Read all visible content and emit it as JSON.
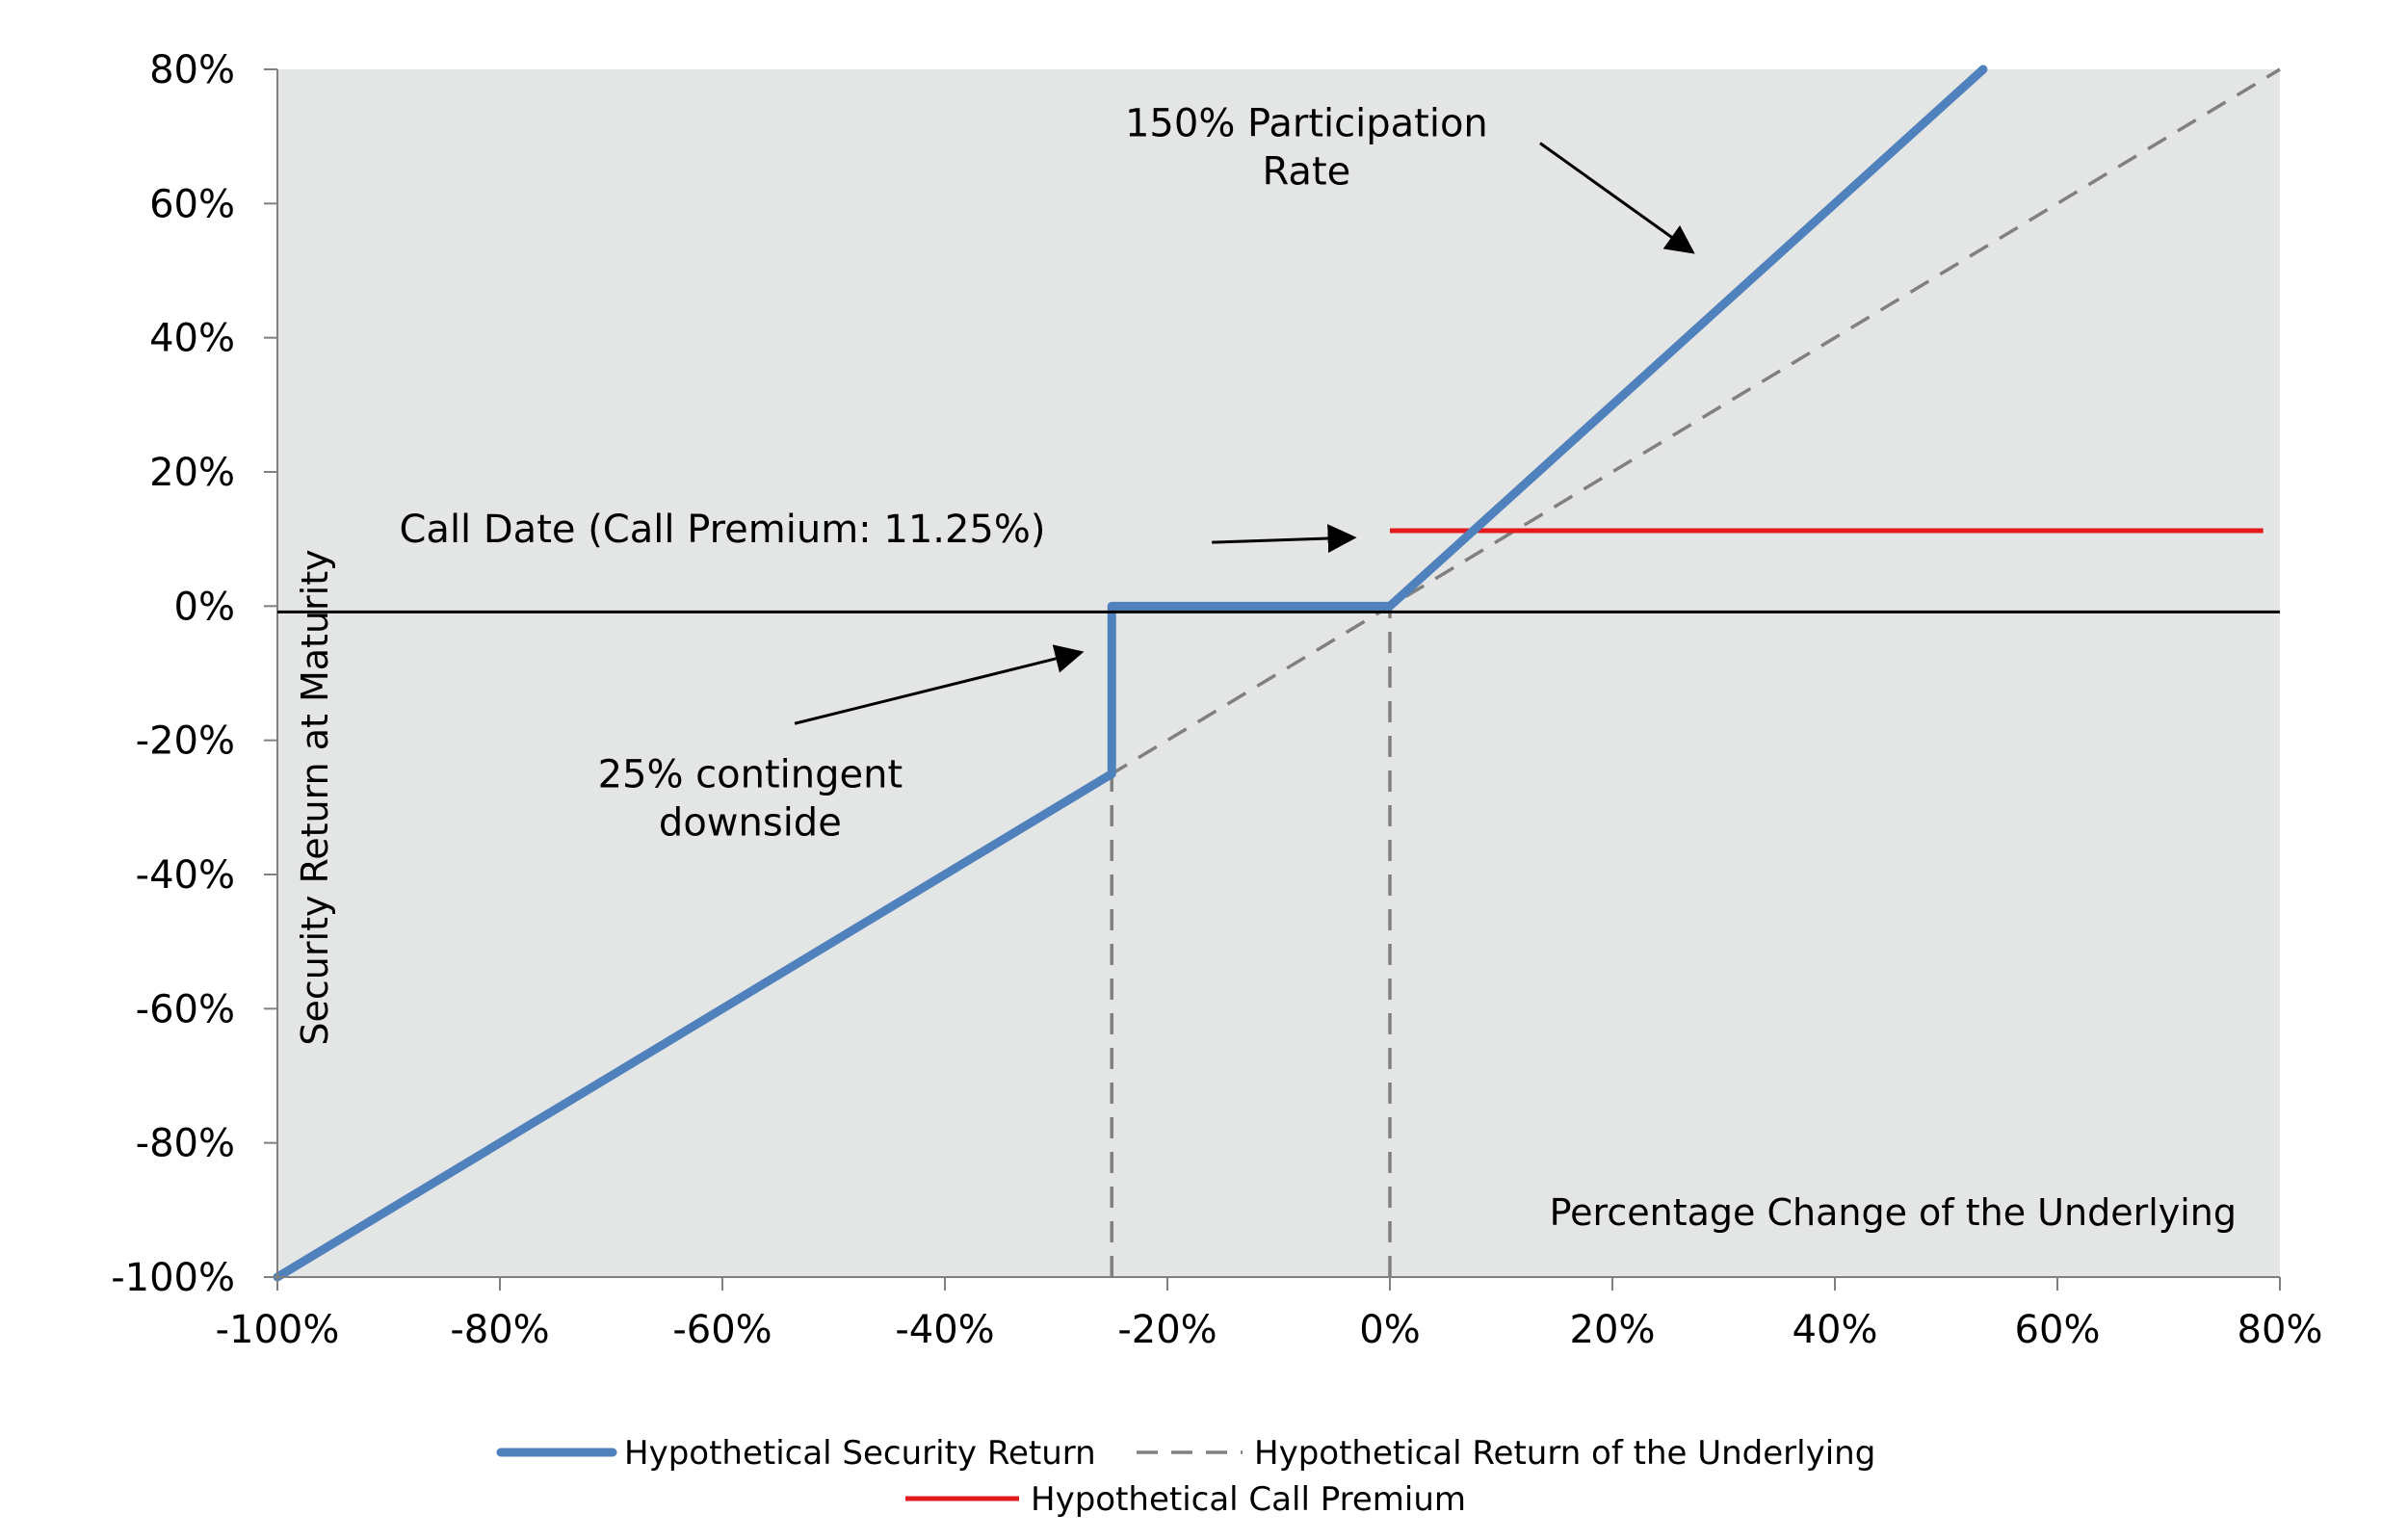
{
  "chart_data": {
    "type": "line",
    "title": "",
    "xlabel": "Percentage Change of the Underlying",
    "ylabel": "Security Return at Maturity",
    "xlim": [
      -100,
      80
    ],
    "ylim": [
      -100,
      80
    ],
    "x_ticks": [
      "-100%",
      "-80%",
      "-60%",
      "-40%",
      "-20%",
      "0%",
      "20%",
      "40%",
      "60%",
      "80%"
    ],
    "y_ticks": [
      "80%",
      "60%",
      "40%",
      "20%",
      "0%",
      "-20%",
      "-40%",
      "-60%",
      "-80%",
      "-100%"
    ],
    "grid": false,
    "legend_position": "bottom",
    "series": [
      {
        "name": "Hypothetical Security Return",
        "color": "#4F81BD",
        "style": "solid-thick",
        "points": [
          [
            -100,
            -100
          ],
          [
            -25,
            -25
          ],
          [
            -25,
            0
          ],
          [
            0,
            0
          ],
          [
            53.33,
            80
          ]
        ]
      },
      {
        "name": "Hypothetical Return of the Underlying",
        "color": "#808080",
        "style": "dashed",
        "points": [
          [
            -100,
            -100
          ],
          [
            80,
            80
          ]
        ]
      },
      {
        "name": "Hypothetical Call Premium",
        "color": "#E31A1C",
        "style": "solid",
        "points": [
          [
            0,
            11.25
          ],
          [
            78.5,
            11.25
          ]
        ]
      }
    ],
    "reference_lines": [
      {
        "x": -25,
        "y_from": -100,
        "y_to": -25
      },
      {
        "x": 0,
        "y_from": -100,
        "y_to": 0
      }
    ],
    "annotations": [
      {
        "lines": [
          "150% Participation",
          "Rate"
        ],
        "text_at": [
          -7.5,
          70
        ],
        "arrow_from": [
          13.5,
          69
        ],
        "arrow_to": [
          27,
          53
        ]
      },
      {
        "lines": [
          "Call Date (Call Premium: 11.25%)"
        ],
        "text_at": [
          -60,
          9.5
        ],
        "arrow_from": [
          -16,
          9.5
        ],
        "arrow_to": [
          -3.5,
          10.2
        ]
      },
      {
        "lines": [
          "25% contingent",
          "downside"
        ],
        "text_at": [
          -57.5,
          -27
        ],
        "arrow_from": [
          -53.5,
          -17.5
        ],
        "arrow_to": [
          -28,
          -7
        ]
      }
    ]
  }
}
